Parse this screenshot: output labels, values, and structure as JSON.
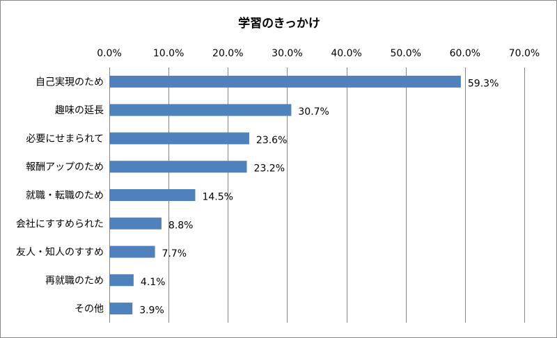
{
  "chart_data": {
    "type": "bar",
    "orientation": "horizontal",
    "title": "学習のきっかけ",
    "categories": [
      "自己実現のため",
      "趣味の延長",
      "必要にせまられて",
      "報酬アップのため",
      "就職・転職のため",
      "会社にすすめられた",
      "友人・知人のすすめ",
      "再就職のため",
      "その他"
    ],
    "values": [
      59.3,
      30.7,
      23.6,
      23.2,
      14.5,
      8.8,
      7.7,
      4.1,
      3.9
    ],
    "data_labels": [
      "59.3%",
      "30.7%",
      "23.6%",
      "23.2%",
      "14.5%",
      "8.8%",
      "7.7%",
      "4.1%",
      "3.9%"
    ],
    "xlim": [
      0,
      70
    ],
    "x_ticks": [
      0,
      10,
      20,
      30,
      40,
      50,
      60,
      70
    ],
    "x_tick_labels": [
      "0.0%",
      "10.0%",
      "20.0%",
      "30.0%",
      "40.0%",
      "50.0%",
      "60.0%",
      "70.0%"
    ],
    "x_axis_position": "top",
    "grid": true,
    "legend": "none",
    "bar_color": "#4f81bd",
    "grid_color": "#868686"
  }
}
